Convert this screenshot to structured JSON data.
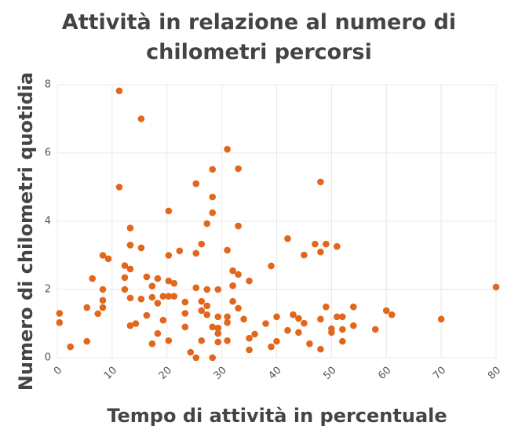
{
  "chart_data": {
    "type": "scatter",
    "title": "Attività in relazione al numero di chilometri percorsi",
    "x_label": "Tempo di attività in percentuale",
    "y_label": "Numero di chilometri quotidia",
    "color": "#e2661c",
    "grid": true,
    "xlim": [
      0,
      80
    ],
    "xticks": [
      0,
      10,
      20,
      30,
      40,
      50,
      60,
      70,
      80
    ],
    "ylim": [
      0,
      8
    ],
    "yticks": [
      0,
      2,
      4,
      6,
      8
    ],
    "x": [
      0.4,
      0.4,
      2.4,
      5.4,
      5.4,
      6.4,
      8.3,
      9.3,
      8.3,
      8.3,
      8.3,
      7.4,
      11.3,
      11.3,
      15.3,
      12.3,
      12.3,
      12.3,
      13.3,
      13.3,
      13.3,
      13.3,
      13.3,
      14.3,
      15.3,
      15.3,
      16.3,
      16.3,
      17.3,
      17.3,
      17.3,
      18.3,
      18.3,
      18.3,
      19.3,
      19.3,
      20.3,
      20.3,
      20.3,
      20.3,
      20.3,
      21.3,
      21.3,
      22.3,
      23.3,
      23.3,
      23.3,
      24.3,
      25.3,
      25.3,
      25.3,
      25.3,
      26.3,
      26.3,
      26.3,
      26.3,
      27.3,
      27.3,
      27.3,
      27.3,
      28.3,
      28.3,
      28.3,
      28.3,
      28.3,
      29.3,
      29.3,
      29.3,
      29.3,
      29.3,
      31,
      31,
      31,
      31,
      31,
      32,
      32,
      32,
      33,
      33,
      33,
      33,
      34,
      35,
      35,
      35,
      36,
      38,
      39,
      39,
      40,
      40,
      42,
      42,
      43,
      44,
      44,
      45,
      45,
      46,
      47,
      48,
      48,
      48,
      48,
      49,
      49,
      50,
      50,
      51,
      51,
      52,
      52,
      52,
      54,
      54,
      58,
      60,
      61,
      70,
      80
    ],
    "values": [
      1.3,
      1.03,
      0.32,
      0.48,
      1.47,
      2.32,
      3.0,
      2.9,
      2.0,
      1.68,
      1.47,
      1.29,
      7.82,
      5.0,
      7.0,
      2.7,
      2.35,
      2.0,
      3.8,
      3.3,
      2.6,
      1.75,
      0.94,
      1.0,
      3.22,
      1.72,
      2.37,
      1.24,
      2.1,
      1.77,
      0.41,
      2.32,
      1.6,
      0.71,
      1.8,
      1.1,
      4.3,
      3.0,
      2.25,
      1.8,
      0.5,
      2.18,
      1.8,
      3.13,
      1.63,
      1.3,
      0.9,
      0.16,
      5.1,
      3.06,
      2.05,
      0.0,
      3.33,
      1.65,
      1.38,
      0.5,
      3.93,
      2.0,
      1.52,
      1.26,
      5.52,
      4.71,
      4.25,
      0.9,
      0.0,
      2.0,
      1.2,
      0.87,
      0.71,
      0.46,
      6.11,
      3.15,
      1.2,
      1.03,
      0.5,
      2.55,
      2.11,
      1.65,
      5.54,
      3.86,
      2.44,
      1.45,
      1.13,
      2.25,
      0.57,
      0.23,
      0.69,
      1.0,
      2.69,
      0.32,
      1.2,
      0.48,
      3.49,
      0.8,
      1.26,
      1.15,
      0.74,
      3.01,
      1.01,
      0.41,
      3.33,
      5.15,
      3.1,
      1.13,
      0.25,
      3.33,
      1.49,
      0.85,
      0.74,
      3.26,
      1.2,
      1.2,
      0.83,
      0.48,
      1.49,
      0.94,
      0.83,
      1.38,
      1.26,
      1.13,
      2.07
    ]
  }
}
